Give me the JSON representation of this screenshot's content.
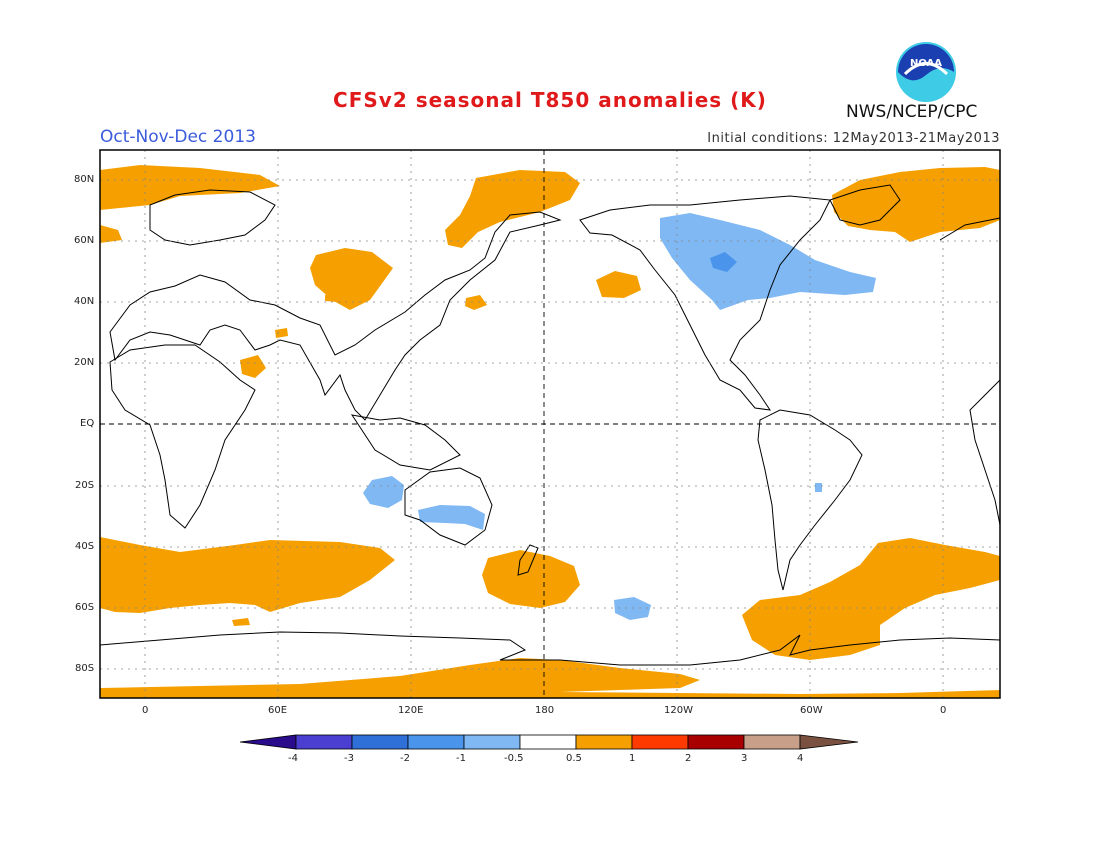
{
  "header": {
    "title": "CFSv2 seasonal T850 anomalies (K)",
    "season": "Oct-Nov-Dec 2013",
    "initial_conditions": "Initial conditions: 12May2013-21May2013",
    "agency": "NWS/NCEP/CPC",
    "logo_text": "NOAA"
  },
  "axes": {
    "lat_labels": [
      "80N",
      "60N",
      "40N",
      "20N",
      "EQ",
      "20S",
      "40S",
      "60S",
      "80S"
    ],
    "lon_labels": [
      "0",
      "60E",
      "120E",
      "180",
      "120W",
      "60W",
      "0"
    ]
  },
  "colorbar": {
    "labels": [
      "-4",
      "-3",
      "-2",
      "-1",
      "-0.5",
      "0.5",
      "1",
      "2",
      "3",
      "4"
    ],
    "colors": [
      "#2a0b8c",
      "#4a3fd0",
      "#2f6fd8",
      "#4b94ec",
      "#7fb8f2",
      "#ffffff",
      "#f5a000",
      "#ff3a00",
      "#a80000",
      "#c8a08a",
      "#7a5040"
    ]
  },
  "colors": {
    "warm_anomaly": "#f5a000",
    "cool_anomaly": "#7fb8f2",
    "strong_cool": "#4b94ec"
  }
}
